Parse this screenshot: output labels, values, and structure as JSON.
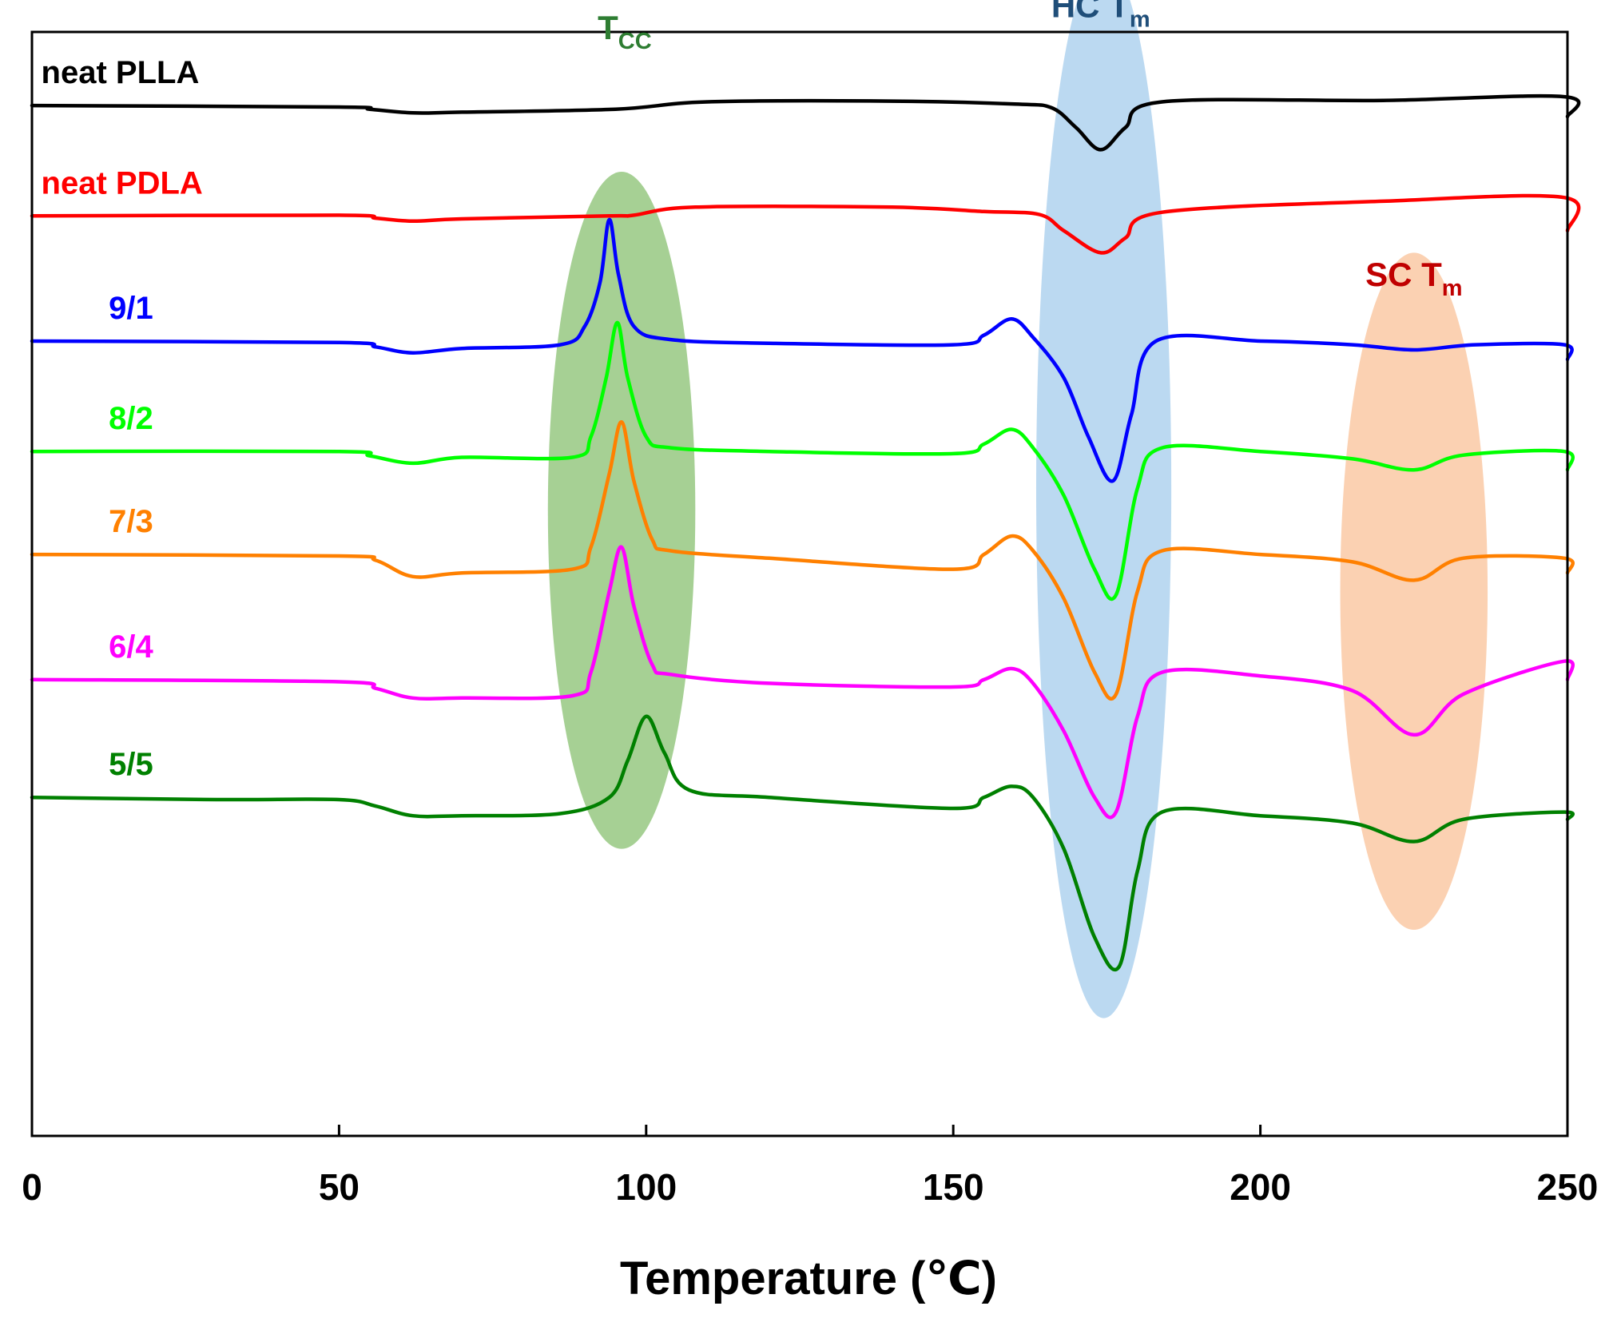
{
  "chart_data": {
    "type": "line",
    "title": "",
    "xlabel": "Temperature (℃)",
    "ylabel": "",
    "xlim": [
      0,
      250
    ],
    "xticks": [
      0,
      50,
      100,
      150,
      200,
      250
    ],
    "ylim": [
      -14,
      1
    ],
    "yaxis_note": "stacked, offset traces; no y tick labels shown",
    "grid": false,
    "series": [
      {
        "name": "neat PLLA",
        "color": "#000000",
        "offset": 0,
        "points": [
          [
            0,
            0
          ],
          [
            50,
            -0.02
          ],
          [
            55,
            -0.05
          ],
          [
            62,
            -0.1
          ],
          [
            70,
            -0.09
          ],
          [
            95,
            -0.05
          ],
          [
            110,
            0.05
          ],
          [
            140,
            0.06
          ],
          [
            160,
            0.02
          ],
          [
            166,
            -0.03
          ],
          [
            170,
            -0.3
          ],
          [
            174,
            -0.6
          ],
          [
            178,
            -0.3
          ],
          [
            184,
            0.05
          ],
          [
            220,
            0.07
          ],
          [
            249.5,
            0.12
          ],
          [
            250,
            -0.15
          ]
        ]
      },
      {
        "name": "neat PDLA",
        "color": "#ff0000",
        "offset": -1.5,
        "points": [
          [
            0,
            0
          ],
          [
            50,
            0.01
          ],
          [
            56,
            -0.03
          ],
          [
            62,
            -0.07
          ],
          [
            70,
            -0.04
          ],
          [
            94,
            0
          ],
          [
            98,
            0.01
          ],
          [
            108,
            0.12
          ],
          [
            140,
            0.12
          ],
          [
            155,
            0.06
          ],
          [
            164,
            0.02
          ],
          [
            168,
            -0.2
          ],
          [
            174,
            -0.5
          ],
          [
            178,
            -0.3
          ],
          [
            184,
            0.05
          ],
          [
            220,
            0.2
          ],
          [
            249.5,
            0.25
          ],
          [
            250,
            -0.2
          ]
        ]
      },
      {
        "name": "9/1",
        "color": "#0000ff",
        "offset": -3.2,
        "points": [
          [
            0,
            0
          ],
          [
            50,
            -0.02
          ],
          [
            56,
            -0.08
          ],
          [
            62,
            -0.16
          ],
          [
            70,
            -0.1
          ],
          [
            86,
            -0.05
          ],
          [
            90,
            0.2
          ],
          [
            92.5,
            0.8
          ],
          [
            94,
            1.65
          ],
          [
            95.5,
            0.9
          ],
          [
            98,
            0.2
          ],
          [
            104,
            0.02
          ],
          [
            120,
            -0.03
          ],
          [
            150,
            -0.05
          ],
          [
            155,
            0.08
          ],
          [
            159.5,
            0.3
          ],
          [
            163,
            0.05
          ],
          [
            168,
            -0.5
          ],
          [
            172,
            -1.3
          ],
          [
            176,
            -1.9
          ],
          [
            179,
            -1.0
          ],
          [
            183,
            0
          ],
          [
            200,
            0
          ],
          [
            215,
            -0.05
          ],
          [
            225,
            -0.12
          ],
          [
            235,
            -0.05
          ],
          [
            249.5,
            -0.05
          ],
          [
            250,
            -0.25
          ]
        ]
      },
      {
        "name": "8/2",
        "color": "#00ff00",
        "offset": -4.7,
        "points": [
          [
            0,
            0
          ],
          [
            50,
            0
          ],
          [
            55,
            -0.06
          ],
          [
            62,
            -0.16
          ],
          [
            70,
            -0.08
          ],
          [
            88,
            -0.08
          ],
          [
            91,
            0.2
          ],
          [
            93.5,
            1.0
          ],
          [
            95.3,
            1.75
          ],
          [
            97,
            1.0
          ],
          [
            100,
            0.2
          ],
          [
            104,
            0.05
          ],
          [
            120,
            0
          ],
          [
            150,
            -0.03
          ],
          [
            155,
            0.1
          ],
          [
            159.5,
            0.3
          ],
          [
            163,
            0.05
          ],
          [
            168,
            -0.6
          ],
          [
            173,
            -1.6
          ],
          [
            176.5,
            -1.95
          ],
          [
            180,
            -0.5
          ],
          [
            184,
            0.05
          ],
          [
            200,
            0
          ],
          [
            215,
            -0.1
          ],
          [
            225,
            -0.25
          ],
          [
            233,
            -0.05
          ],
          [
            249.5,
            0
          ],
          [
            250,
            -0.25
          ]
        ]
      },
      {
        "name": "7/3",
        "color": "#ff8000",
        "offset": -6.1,
        "points": [
          [
            0,
            0
          ],
          [
            50,
            -0.02
          ],
          [
            56,
            -0.08
          ],
          [
            62,
            -0.3
          ],
          [
            70,
            -0.25
          ],
          [
            88,
            -0.2
          ],
          [
            91,
            0.1
          ],
          [
            94,
            1.1
          ],
          [
            96,
            1.8
          ],
          [
            98,
            1.0
          ],
          [
            101,
            0.2
          ],
          [
            104,
            0.05
          ],
          [
            120,
            -0.05
          ],
          [
            150,
            -0.2
          ],
          [
            155,
            0
          ],
          [
            159.5,
            0.25
          ],
          [
            163,
            0.05
          ],
          [
            168,
            -0.6
          ],
          [
            173,
            -1.6
          ],
          [
            176.5,
            -1.9
          ],
          [
            180,
            -0.5
          ],
          [
            184,
            0.05
          ],
          [
            200,
            0
          ],
          [
            215,
            -0.1
          ],
          [
            225,
            -0.35
          ],
          [
            233,
            -0.05
          ],
          [
            249.5,
            -0.05
          ],
          [
            250,
            -0.25
          ]
        ]
      },
      {
        "name": "6/4",
        "color": "#ff00ff",
        "offset": -7.8,
        "points": [
          [
            0,
            0
          ],
          [
            50,
            -0.03
          ],
          [
            56,
            -0.12
          ],
          [
            62,
            -0.25
          ],
          [
            70,
            -0.25
          ],
          [
            88,
            -0.22
          ],
          [
            91,
            0.1
          ],
          [
            94,
            1.2
          ],
          [
            96,
            1.8
          ],
          [
            98,
            1.0
          ],
          [
            101,
            0.2
          ],
          [
            104,
            0.07
          ],
          [
            120,
            -0.05
          ],
          [
            150,
            -0.1
          ],
          [
            155,
            0
          ],
          [
            159.5,
            0.15
          ],
          [
            163,
            -0.05
          ],
          [
            168,
            -0.7
          ],
          [
            173,
            -1.6
          ],
          [
            176.5,
            -1.8
          ],
          [
            180,
            -0.5
          ],
          [
            184,
            0.1
          ],
          [
            200,
            0.05
          ],
          [
            215,
            -0.15
          ],
          [
            225,
            -0.75
          ],
          [
            233,
            -0.2
          ],
          [
            249.5,
            0.25
          ],
          [
            250,
            0
          ]
        ]
      },
      {
        "name": "5/5",
        "color": "#008000",
        "offset": -9.4,
        "points": [
          [
            0,
            0
          ],
          [
            30,
            -0.03
          ],
          [
            50,
            -0.03
          ],
          [
            56,
            -0.12
          ],
          [
            62,
            -0.25
          ],
          [
            70,
            -0.25
          ],
          [
            86,
            -0.22
          ],
          [
            94,
            0
          ],
          [
            97,
            0.5
          ],
          [
            100,
            1.1
          ],
          [
            103,
            0.6
          ],
          [
            107,
            0.1
          ],
          [
            120,
            0
          ],
          [
            150,
            -0.15
          ],
          [
            155,
            0
          ],
          [
            159.5,
            0.15
          ],
          [
            163,
            0
          ],
          [
            168,
            -0.7
          ],
          [
            173,
            -1.9
          ],
          [
            177,
            -2.3
          ],
          [
            180,
            -1.0
          ],
          [
            184,
            -0.2
          ],
          [
            200,
            -0.25
          ],
          [
            215,
            -0.35
          ],
          [
            225,
            -0.6
          ],
          [
            233,
            -0.3
          ],
          [
            249.5,
            -0.2
          ],
          [
            250,
            -0.3
          ]
        ]
      }
    ],
    "annotations": [
      {
        "main": "T",
        "sub": "CC",
        "color": "#2e7d32",
        "x": 96.5,
        "y": 0.9,
        "region": {
          "x": 96,
          "y": -5.5,
          "rx": 12,
          "ry": 4.6,
          "fill": "#6ab04c"
        }
      },
      {
        "main": "HC T",
        "sub": "m",
        "color": "#1f4e79",
        "x": 174,
        "y": 1.2,
        "region": {
          "x": 174.5,
          "y": -5.2,
          "rx": 11,
          "ry": 7.2,
          "fill": "#8dbfe8"
        }
      },
      {
        "main": "SC T",
        "sub": "m",
        "color": "#c00000",
        "x": 225,
        "y": -2.45,
        "region": {
          "x": 225,
          "y": -6.6,
          "rx": 12,
          "ry": 4.6,
          "fill": "#f8b27f"
        }
      }
    ]
  }
}
